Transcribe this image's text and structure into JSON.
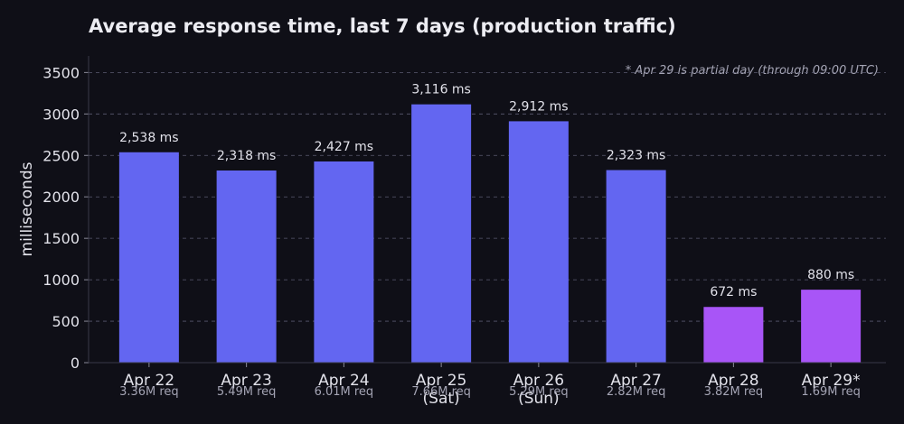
{
  "chart_data": {
    "type": "bar",
    "title": "Average response time, last 7 days (production traffic)",
    "annotation": "* Apr 29 is partial day (through 09:00 UTC)",
    "xlabel": "",
    "ylabel": "milliseconds",
    "ylim": [
      0,
      3700
    ],
    "yticks": [
      0,
      500,
      1000,
      1500,
      2000,
      2500,
      3000,
      3500
    ],
    "grid": true,
    "categories": [
      "Apr 22",
      "Apr 23",
      "Apr 24",
      "Apr 25\n(Sat)",
      "Apr 26\n(Sun)",
      "Apr 27",
      "Apr 28",
      "Apr 29*"
    ],
    "values": [
      2538,
      2318,
      2427,
      3116,
      2912,
      2323,
      672,
      880
    ],
    "value_labels": [
      "2,538 ms",
      "2,318 ms",
      "2,427 ms",
      "3,116 ms",
      "2,912 ms",
      "2,323 ms",
      "672 ms",
      "880 ms"
    ],
    "request_labels": [
      "3.36M req",
      "5.49M req",
      "6.01M req",
      "7.66M req",
      "5.29M req",
      "2.82M req",
      "3.82M req",
      "1.69M req"
    ],
    "colors": [
      "#6366f1",
      "#6366f1",
      "#6366f1",
      "#6366f1",
      "#6366f1",
      "#6366f1",
      "#a855f7",
      "#a855f7"
    ]
  }
}
